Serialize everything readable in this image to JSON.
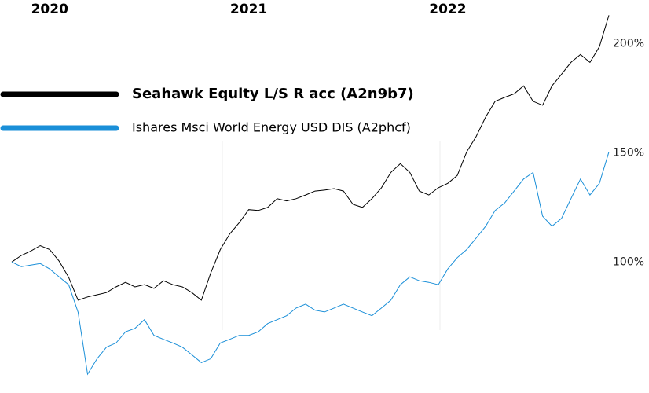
{
  "chart_data": {
    "type": "line",
    "categories": [
      null,
      null,
      null,
      null,
      "2020",
      null,
      null,
      null,
      null,
      null,
      null,
      null,
      null,
      null,
      null,
      null,
      null,
      null,
      null,
      null,
      null,
      null,
      null,
      null,
      null,
      "2021",
      null,
      null,
      null,
      null,
      null,
      null,
      null,
      null,
      null,
      null,
      null,
      null,
      null,
      null,
      null,
      null,
      null,
      null,
      null,
      null,
      "2022",
      null,
      null,
      null,
      null,
      null,
      null,
      null,
      null,
      null,
      null,
      null,
      null,
      null,
      null,
      null,
      null,
      null
    ],
    "series": [
      {
        "name": "Seahawk Equity L/S R acc (A2n9b7)",
        "color": "#000000",
        "values": [
          100,
          103,
          105,
          107.5,
          105.7,
          100.4,
          93,
          82.5,
          84,
          85,
          86,
          88.6,
          90.7,
          88.6,
          89.6,
          87.9,
          91.4,
          89.6,
          88.6,
          86,
          82.5,
          95,
          105.7,
          112.9,
          118,
          124,
          123.6,
          125,
          129,
          128,
          129,
          130.7,
          132.5,
          132.9,
          133.6,
          132.5,
          126.4,
          125,
          129,
          134,
          141,
          145,
          141,
          132.5,
          130.7,
          134,
          136,
          139.6,
          150.4,
          157.5,
          166.4,
          173.6,
          175.4,
          177,
          180.7,
          173.6,
          171.8,
          180.7,
          186,
          191.4,
          195,
          191.4,
          198.6,
          213
        ]
      },
      {
        "name": "Ishares Msci World Energy USD DIS (A2phcf)",
        "color": "#1a8fd8",
        "values": [
          100,
          97.9,
          98.6,
          99.3,
          96.8,
          93.2,
          89.6,
          77,
          48.6,
          55.7,
          61,
          62.9,
          68,
          69.6,
          73.6,
          66.4,
          64.6,
          62.9,
          61,
          57.5,
          53.9,
          55.7,
          62.9,
          64.6,
          66.4,
          66.4,
          68,
          71.8,
          73.6,
          75.4,
          78.9,
          80.7,
          77.9,
          77.1,
          78.9,
          80.7,
          78.9,
          77.1,
          75.4,
          78.9,
          82.5,
          89.6,
          93.2,
          91.4,
          90.7,
          89.6,
          96.8,
          102,
          105.7,
          111,
          116.4,
          123.6,
          127,
          132.5,
          138,
          141,
          121,
          116.4,
          120,
          129,
          138,
          130.7,
          136,
          150.4
        ]
      }
    ],
    "ylim": [
      40,
      220
    ],
    "yticks": [
      {
        "value": 100,
        "label": "100%"
      },
      {
        "value": 150,
        "label": "150%"
      },
      {
        "value": 200,
        "label": "200%"
      }
    ],
    "grid": false
  }
}
